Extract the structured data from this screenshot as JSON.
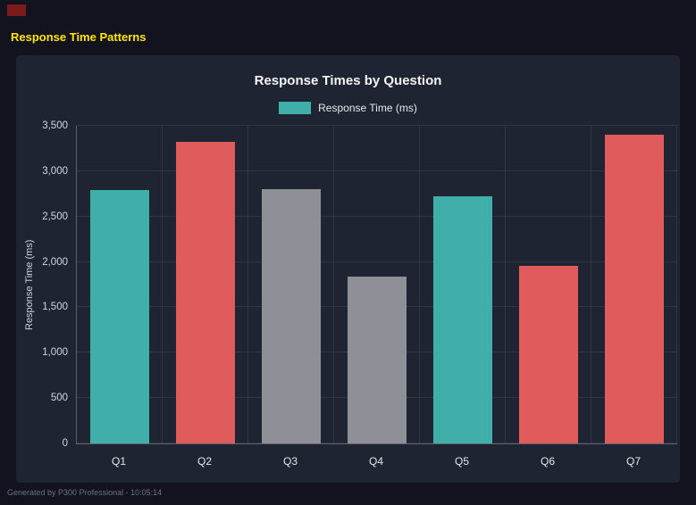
{
  "page": {
    "title": "Response Time Patterns",
    "footer": "Generated by P300 Professional - 10:05:14"
  },
  "colors": {
    "page_bg": "#12131f",
    "panel_bg": "#1e2432",
    "accent_yellow": "#ffe600",
    "logo_red": "#7c1b1b",
    "teal": "#40afa9",
    "red": "#e05c5c",
    "gray": "#8f8f97"
  },
  "chart_data": {
    "type": "bar",
    "title": "Response Times by Question",
    "legend": [
      {
        "label": "Response Time (ms)",
        "color": "#40afa9"
      }
    ],
    "legend_position": "top",
    "categories": [
      "Q1",
      "Q2",
      "Q3",
      "Q4",
      "Q5",
      "Q6",
      "Q7"
    ],
    "values": [
      2790,
      3320,
      2800,
      1840,
      2720,
      1960,
      3400
    ],
    "bar_colors": [
      "#40afa9",
      "#e05c5c",
      "#8f8f97",
      "#8f8f97",
      "#40afa9",
      "#e05c5c",
      "#e05c5c"
    ],
    "xlabel": "",
    "ylabel": "Response Time (ms)",
    "ylim": [
      0,
      3500
    ],
    "ytick_step": 500,
    "yticks_labels": [
      "0",
      "500",
      "1,000",
      "1,500",
      "2,000",
      "2,500",
      "3,000",
      "3,500"
    ],
    "grid": true
  }
}
